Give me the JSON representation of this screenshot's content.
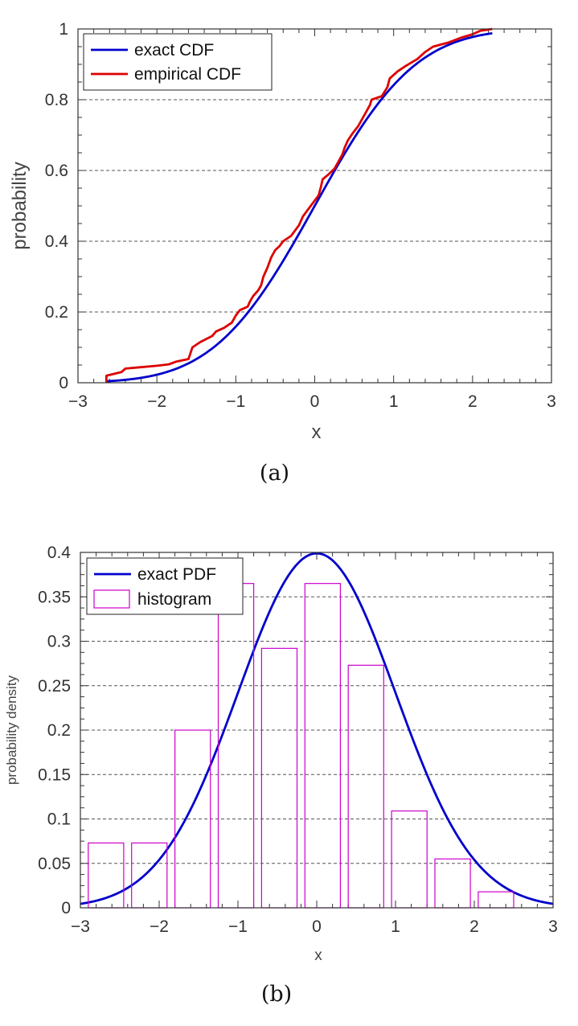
{
  "chart_data": [
    {
      "type": "line",
      "panel": "a",
      "caption": "(a)",
      "xlabel": "x",
      "ylabel": "probability",
      "xlim": [
        -3,
        3
      ],
      "ylim": [
        0,
        1
      ],
      "xticks": [
        -3,
        -2,
        -1,
        0,
        1,
        2,
        3
      ],
      "xtick_labels": [
        "−3",
        "−2",
        "−1",
        "0",
        "1",
        "2",
        "3"
      ],
      "yticks": [
        0,
        0.2,
        0.4,
        0.6,
        0.8,
        1
      ],
      "ytick_labels": [
        "0",
        "0.2",
        "0.4",
        "0.6",
        "0.8",
        "1"
      ],
      "grid": "horizontal dashed",
      "legend_position": "top-left",
      "series": [
        {
          "name": "exact CDF",
          "color": "#0000cc",
          "kind": "normal-cdf",
          "x_range": [
            -2.65,
            2.25
          ]
        },
        {
          "name": "empirical CDF",
          "color": "#dd0000",
          "kind": "step",
          "points": [
            [
              -2.64,
              0.0
            ],
            [
              -2.64,
              0.02
            ],
            [
              -2.45,
              0.03
            ],
            [
              -2.4,
              0.04
            ],
            [
              -2.25,
              0.043
            ],
            [
              -2.0,
              0.048
            ],
            [
              -1.85,
              0.052
            ],
            [
              -1.75,
              0.06
            ],
            [
              -1.6,
              0.067
            ],
            [
              -1.58,
              0.08
            ],
            [
              -1.55,
              0.1
            ],
            [
              -1.45,
              0.115
            ],
            [
              -1.3,
              0.132
            ],
            [
              -1.25,
              0.145
            ],
            [
              -1.15,
              0.155
            ],
            [
              -1.05,
              0.17
            ],
            [
              -1.0,
              0.19
            ],
            [
              -0.95,
              0.205
            ],
            [
              -0.85,
              0.215
            ],
            [
              -0.82,
              0.23
            ],
            [
              -0.78,
              0.245
            ],
            [
              -0.72,
              0.26
            ],
            [
              -0.68,
              0.275
            ],
            [
              -0.65,
              0.3
            ],
            [
              -0.6,
              0.325
            ],
            [
              -0.55,
              0.355
            ],
            [
              -0.5,
              0.375
            ],
            [
              -0.45,
              0.385
            ],
            [
              -0.4,
              0.4
            ],
            [
              -0.3,
              0.415
            ],
            [
              -0.25,
              0.43
            ],
            [
              -0.2,
              0.445
            ],
            [
              -0.15,
              0.47
            ],
            [
              -0.1,
              0.485
            ],
            [
              -0.05,
              0.5
            ],
            [
              0.0,
              0.515
            ],
            [
              0.05,
              0.53
            ],
            [
              0.08,
              0.555
            ],
            [
              0.1,
              0.575
            ],
            [
              0.18,
              0.59
            ],
            [
              0.25,
              0.605
            ],
            [
              0.3,
              0.625
            ],
            [
              0.35,
              0.645
            ],
            [
              0.38,
              0.665
            ],
            [
              0.42,
              0.685
            ],
            [
              0.48,
              0.705
            ],
            [
              0.55,
              0.725
            ],
            [
              0.6,
              0.745
            ],
            [
              0.65,
              0.765
            ],
            [
              0.7,
              0.785
            ],
            [
              0.72,
              0.8
            ],
            [
              0.85,
              0.81
            ],
            [
              0.92,
              0.835
            ],
            [
              0.95,
              0.86
            ],
            [
              1.05,
              0.88
            ],
            [
              1.15,
              0.895
            ],
            [
              1.3,
              0.915
            ],
            [
              1.4,
              0.935
            ],
            [
              1.5,
              0.95
            ],
            [
              1.7,
              0.962
            ],
            [
              1.85,
              0.975
            ],
            [
              2.0,
              0.985
            ],
            [
              2.1,
              0.995
            ],
            [
              2.25,
              1.0
            ]
          ]
        }
      ]
    },
    {
      "type": "bar",
      "panel": "b",
      "caption": "(b)",
      "xlabel": "x",
      "ylabel": "probability density",
      "xlim": [
        -3,
        3
      ],
      "ylim": [
        0,
        0.4
      ],
      "xticks": [
        -3,
        -2,
        -1,
        0,
        1,
        2,
        3
      ],
      "xtick_labels": [
        "−3",
        "−2",
        "−1",
        "0",
        "1",
        "2",
        "3"
      ],
      "yticks": [
        0,
        0.05,
        0.1,
        0.15,
        0.2,
        0.25,
        0.3,
        0.35,
        0.4
      ],
      "ytick_labels": [
        "0",
        "0.05",
        "0.1",
        "0.15",
        "0.2",
        "0.25",
        "0.3",
        "0.35",
        "0.4"
      ],
      "grid": "horizontal dashed",
      "legend_position": "top-left",
      "series": [
        {
          "name": "exact PDF",
          "color": "#0000cc",
          "kind": "normal-pdf",
          "x_range": [
            -3,
            3
          ]
        },
        {
          "name": "histogram",
          "color": "#cc00cc",
          "kind": "histogram",
          "bin_width": 0.55,
          "bin_starts": [
            -2.9,
            -2.35,
            -1.8,
            -1.25,
            -0.7,
            -0.15,
            0.4,
            0.95,
            1.5,
            2.05
          ],
          "values": [
            0.073,
            0.073,
            0.2,
            0.365,
            0.292,
            0.365,
            0.273,
            0.109,
            0.055,
            0.018
          ],
          "drawn_width": 0.45
        }
      ]
    }
  ]
}
